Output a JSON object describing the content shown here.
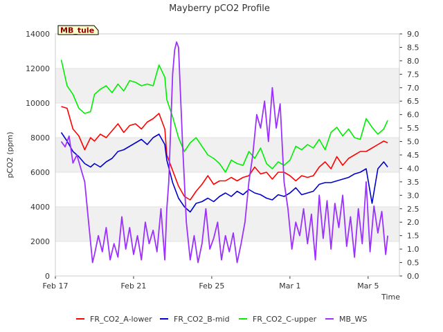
{
  "chart_data": {
    "type": "line",
    "title": "Mayberry pCO2 Profile",
    "xlabel": "Time",
    "ylabel": "pCO2 (ppm)",
    "ylim": [
      0,
      14000
    ],
    "y2lim": [
      0.0,
      9.0
    ],
    "yticks": [
      0,
      2000,
      4000,
      6000,
      8000,
      10000,
      12000,
      14000
    ],
    "y2ticks": [
      "0.0",
      "0.5",
      "1.0",
      "1.5",
      "2.0",
      "2.5",
      "3.0",
      "3.5",
      "4.0",
      "4.5",
      "5.0",
      "5.5",
      "6.0",
      "6.5",
      "7.0",
      "7.5",
      "8.0",
      "8.5",
      "9.0"
    ],
    "xlim": [
      0,
      17.6
    ],
    "xticks": [
      {
        "day": 0,
        "label": "Feb 17"
      },
      {
        "day": 4,
        "label": "Feb 21"
      },
      {
        "day": 8,
        "label": "Feb 25"
      },
      {
        "day": 12,
        "label": "Mar 1"
      },
      {
        "day": 16,
        "label": "Mar 5"
      }
    ],
    "site_label": "MB_tule",
    "grid_bands": [
      [
        2000,
        4000
      ],
      [
        6000,
        8000
      ],
      [
        10000,
        12000
      ]
    ],
    "series": [
      {
        "name": "FR_CO2_A-lower",
        "color": "#ff0000",
        "axis": "left",
        "x": [
          0.3,
          0.6,
          0.9,
          1.2,
          1.5,
          1.8,
          2.0,
          2.3,
          2.6,
          2.9,
          3.2,
          3.5,
          3.8,
          4.1,
          4.4,
          4.7,
          5.0,
          5.3,
          5.6,
          5.7,
          6.0,
          6.3,
          6.6,
          6.9,
          7.2,
          7.5,
          7.8,
          8.1,
          8.4,
          8.7,
          9.0,
          9.3,
          9.6,
          9.9,
          10.2,
          10.5,
          10.8,
          11.1,
          11.4,
          11.7,
          12.0,
          12.3,
          12.6,
          12.9,
          13.2,
          13.5,
          13.8,
          14.1,
          14.4,
          14.7,
          15.0,
          15.3,
          15.6,
          15.9,
          16.2,
          16.5,
          16.8,
          17.0
        ],
        "values": [
          9800,
          9700,
          8500,
          8100,
          7300,
          8000,
          7800,
          8200,
          8000,
          8400,
          8800,
          8300,
          8700,
          8800,
          8500,
          8900,
          9100,
          9400,
          8500,
          7000,
          6100,
          5200,
          4600,
          4400,
          4900,
          5300,
          5800,
          5300,
          5500,
          5500,
          5700,
          5500,
          5700,
          5800,
          6300,
          5900,
          6000,
          5600,
          6000,
          6000,
          5800,
          5500,
          5800,
          5700,
          5800,
          6300,
          6600,
          6200,
          6900,
          6400,
          6800,
          7000,
          7200,
          7200,
          7400,
          7600,
          7800,
          7700
        ]
      },
      {
        "name": "FR_CO2_B-mid",
        "color": "#0000cc",
        "axis": "left",
        "x": [
          0.3,
          0.6,
          0.9,
          1.2,
          1.5,
          1.8,
          2.0,
          2.3,
          2.6,
          2.9,
          3.2,
          3.5,
          3.8,
          4.1,
          4.4,
          4.7,
          5.0,
          5.3,
          5.6,
          5.7,
          6.0,
          6.3,
          6.6,
          6.9,
          7.2,
          7.5,
          7.8,
          8.1,
          8.4,
          8.7,
          9.0,
          9.3,
          9.6,
          9.9,
          10.2,
          10.5,
          10.8,
          11.1,
          11.4,
          11.7,
          12.0,
          12.3,
          12.6,
          12.9,
          13.2,
          13.5,
          13.8,
          14.1,
          14.4,
          14.7,
          15.0,
          15.3,
          15.6,
          15.9,
          16.2,
          16.5,
          16.8,
          17.0
        ],
        "values": [
          8300,
          7800,
          7200,
          6900,
          6500,
          6300,
          6500,
          6300,
          6600,
          6800,
          7200,
          7300,
          7500,
          7700,
          7900,
          7600,
          8000,
          8200,
          7600,
          6700,
          5400,
          4500,
          4000,
          3700,
          4200,
          4300,
          4500,
          4300,
          4600,
          4800,
          4600,
          4900,
          4700,
          5000,
          4800,
          4700,
          4500,
          4400,
          4700,
          4600,
          4800,
          5100,
          4700,
          4800,
          4900,
          5300,
          5400,
          5400,
          5500,
          5600,
          5700,
          5900,
          6000,
          6200,
          4200,
          6200,
          6600,
          6300
        ]
      },
      {
        "name": "FR_CO2_C-upper",
        "color": "#00ee00",
        "axis": "left",
        "x": [
          0.3,
          0.6,
          0.9,
          1.2,
          1.5,
          1.8,
          2.0,
          2.3,
          2.6,
          2.9,
          3.2,
          3.5,
          3.8,
          4.1,
          4.4,
          4.7,
          5.0,
          5.3,
          5.6,
          5.7,
          6.0,
          6.3,
          6.6,
          6.9,
          7.2,
          7.5,
          7.8,
          8.1,
          8.4,
          8.7,
          9.0,
          9.3,
          9.6,
          9.9,
          10.2,
          10.5,
          10.8,
          11.1,
          11.4,
          11.7,
          12.0,
          12.3,
          12.6,
          12.9,
          13.2,
          13.5,
          13.8,
          14.1,
          14.4,
          14.7,
          15.0,
          15.3,
          15.6,
          15.9,
          16.2,
          16.5,
          16.8,
          17.0
        ],
        "values": [
          12500,
          11000,
          10500,
          9700,
          9400,
          9500,
          10500,
          10800,
          11000,
          10600,
          11100,
          10700,
          11300,
          11200,
          11000,
          11100,
          11000,
          12200,
          11500,
          10200,
          9200,
          8000,
          7200,
          7700,
          8000,
          7500,
          7000,
          6800,
          6500,
          6000,
          6700,
          6500,
          6400,
          7200,
          6800,
          7400,
          6500,
          6200,
          6600,
          6400,
          6700,
          7500,
          7300,
          7600,
          7400,
          7900,
          7300,
          8300,
          8600,
          8100,
          8500,
          8000,
          7900,
          9100,
          8600,
          8200,
          8500,
          9000
        ]
      },
      {
        "name": "MB_WS",
        "color": "#9b30ff",
        "axis": "right",
        "x": [
          0.3,
          0.5,
          0.7,
          0.9,
          1.1,
          1.3,
          1.5,
          1.7,
          1.9,
          2.0,
          2.2,
          2.4,
          2.6,
          2.8,
          3.0,
          3.2,
          3.4,
          3.6,
          3.8,
          4.0,
          4.2,
          4.4,
          4.6,
          4.8,
          5.0,
          5.2,
          5.4,
          5.6,
          5.7,
          5.8,
          5.9,
          6.0,
          6.1,
          6.2,
          6.3,
          6.5,
          6.7,
          6.9,
          7.1,
          7.3,
          7.5,
          7.7,
          7.9,
          8.1,
          8.3,
          8.5,
          8.7,
          8.9,
          9.1,
          9.3,
          9.5,
          9.7,
          9.9,
          10.1,
          10.3,
          10.5,
          10.7,
          10.9,
          11.1,
          11.3,
          11.5,
          11.7,
          11.9,
          12.1,
          12.3,
          12.5,
          12.7,
          12.9,
          13.1,
          13.3,
          13.5,
          13.7,
          13.9,
          14.1,
          14.3,
          14.5,
          14.7,
          14.9,
          15.1,
          15.3,
          15.5,
          15.7,
          15.9,
          16.1,
          16.3,
          16.5,
          16.7,
          16.9,
          17.0
        ],
        "values": [
          5.0,
          4.8,
          5.2,
          4.2,
          4.5,
          4.0,
          3.5,
          2.0,
          0.5,
          0.8,
          1.5,
          0.9,
          1.8,
          0.6,
          1.2,
          0.7,
          2.2,
          1.0,
          1.8,
          0.8,
          1.5,
          0.6,
          2.0,
          1.2,
          1.7,
          0.9,
          2.5,
          0.6,
          2.5,
          3.5,
          5.5,
          7.5,
          8.4,
          8.7,
          8.5,
          5.0,
          2.0,
          0.6,
          1.5,
          0.5,
          1.2,
          2.5,
          1.0,
          1.4,
          2.0,
          0.6,
          1.5,
          0.9,
          1.6,
          0.5,
          1.2,
          2.0,
          3.5,
          4.5,
          6.0,
          5.5,
          6.5,
          5.0,
          7.0,
          5.5,
          6.4,
          3.5,
          2.5,
          1.0,
          2.0,
          1.5,
          2.5,
          1.2,
          2.3,
          0.6,
          3.0,
          1.4,
          2.8,
          1.0,
          2.7,
          1.8,
          3.0,
          1.1,
          2.2,
          0.7,
          2.5,
          1.2,
          3.5,
          0.9,
          2.6,
          1.6,
          2.4,
          0.8,
          1.5
        ]
      }
    ]
  }
}
